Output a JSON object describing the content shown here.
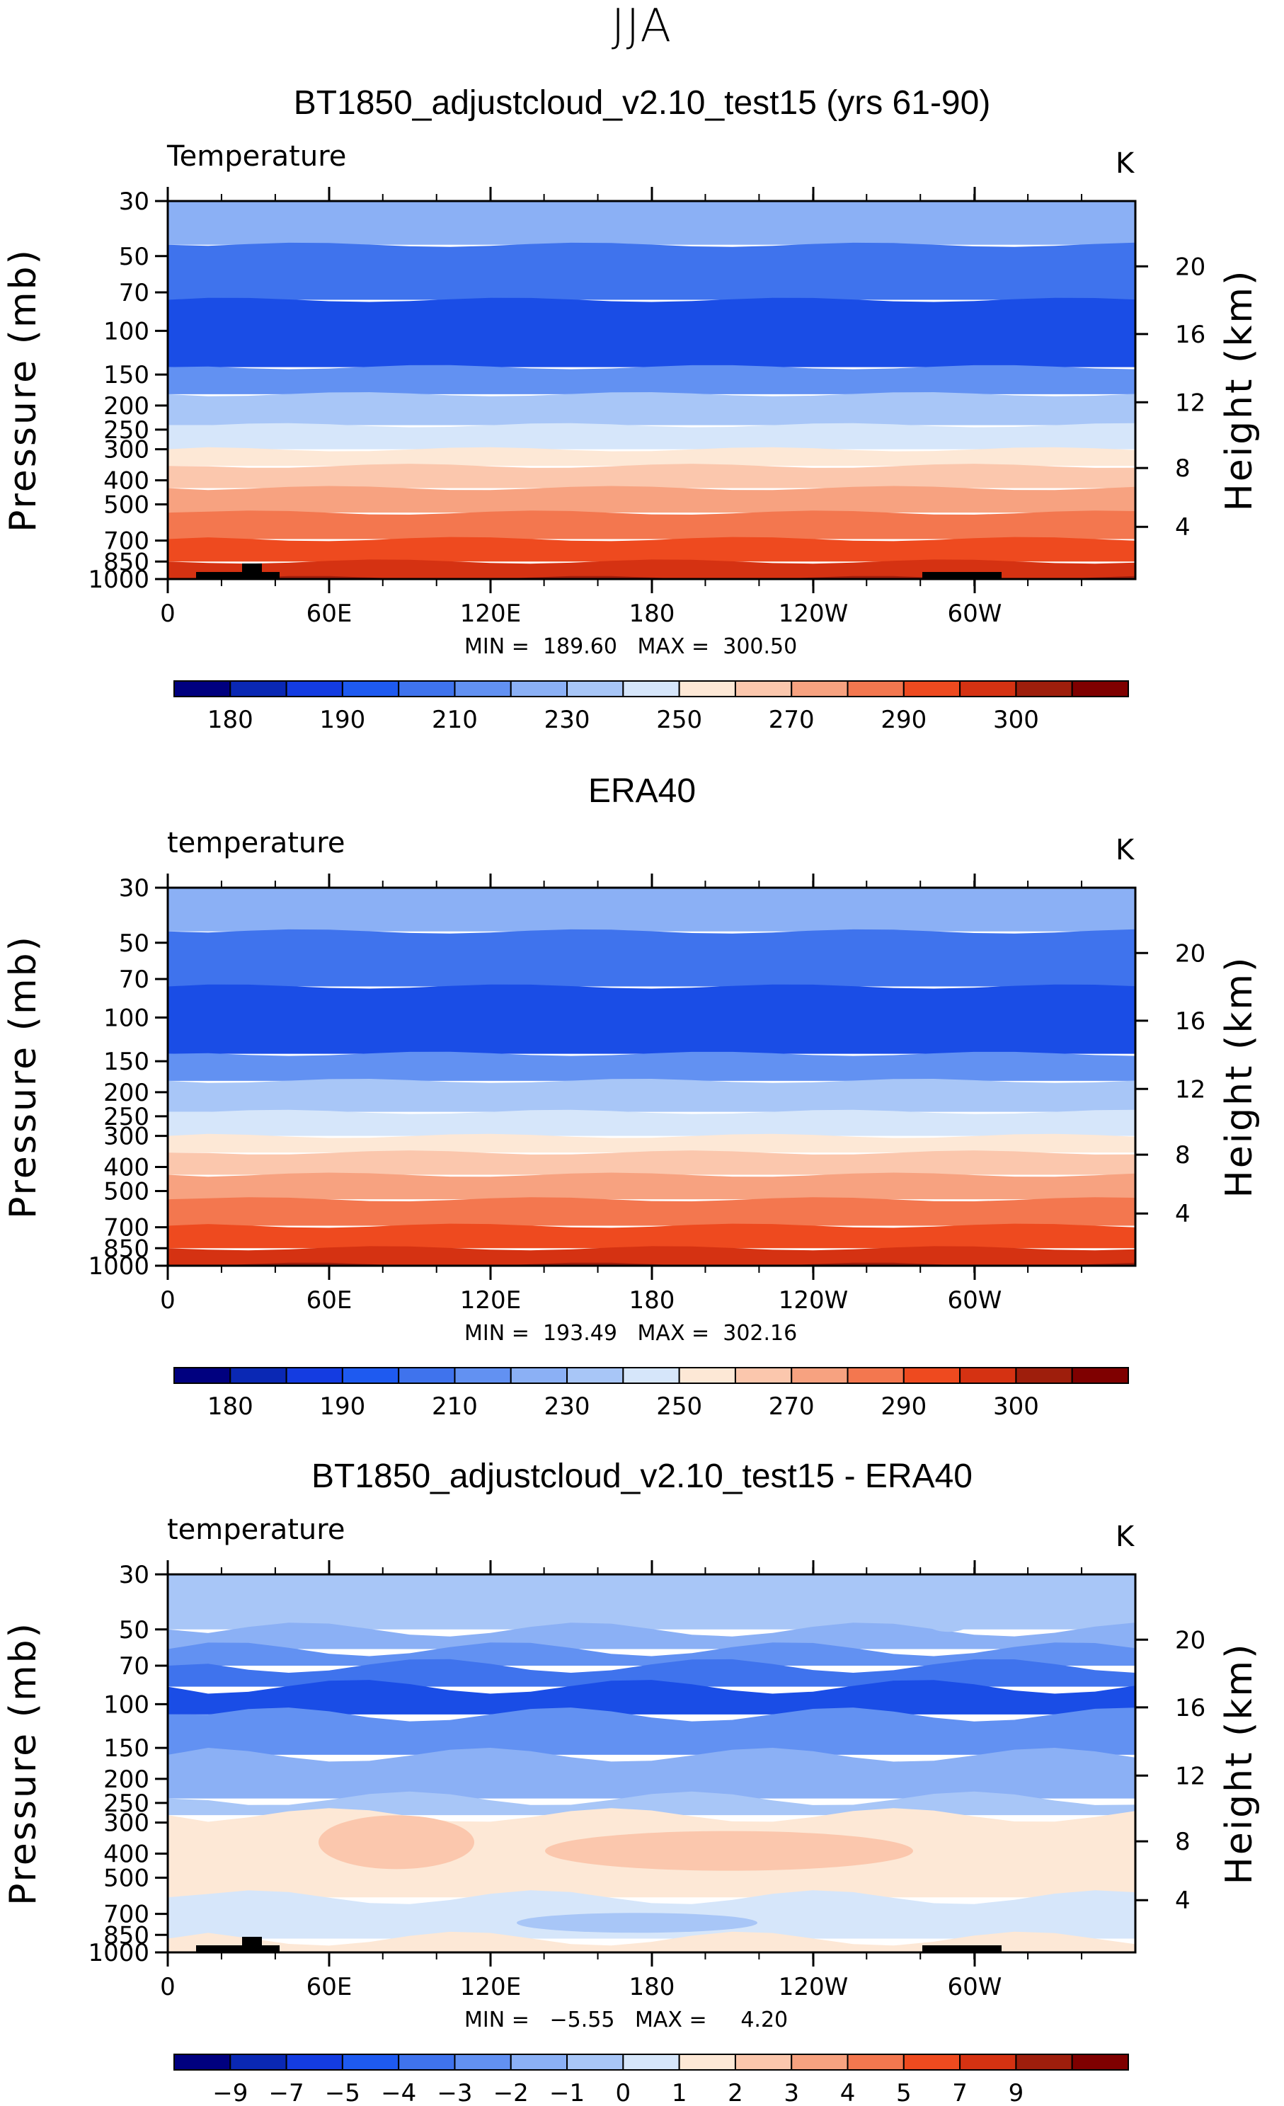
{
  "figure": {
    "title": "JJA"
  },
  "chart_data": [
    {
      "type": "heatmap",
      "title": "BT1850_adjustcloud_v2.10_test15 (yrs 61-90)",
      "variable": "Temperature",
      "units": "K",
      "ylabel": "Pressure (mb)",
      "ylabel_right": "Height (km)",
      "yticks": [
        "30",
        "50",
        "70",
        "100",
        "150",
        "200",
        "250",
        "300",
        "400",
        "500",
        "700",
        "850",
        "1000"
      ],
      "yticks_right": [
        "20",
        "16",
        "12",
        "8",
        "4"
      ],
      "xticks": [
        "0",
        "60E",
        "120E",
        "180",
        "120W",
        "60W"
      ],
      "stats": {
        "min_label": "MIN",
        "min": "189.60",
        "max_label": "MAX",
        "max": "300.50"
      },
      "colorbar_labels": [
        "180",
        "190",
        "210",
        "230",
        "250",
        "270",
        "290",
        "300"
      ],
      "level_colors": [
        "#8bb0f5",
        "#3f73ed",
        "#1a4de6",
        "#6291f2",
        "#a8c6f7",
        "#d6e6fa",
        "#fde8d6",
        "#fbc7ad",
        "#f7a280",
        "#f3774f",
        "#ee4a1f",
        "#d53212",
        "#9e1e0c"
      ],
      "level_pressures": [
        30,
        45,
        75,
        140,
        180,
        240,
        300,
        350,
        430,
        540,
        690,
        850,
        990,
        1000
      ],
      "levels_description": "zonal-mean temperature bands"
    },
    {
      "type": "heatmap",
      "title": "ERA40",
      "variable": "temperature",
      "units": "K",
      "ylabel": "Pressure (mb)",
      "ylabel_right": "Height (km)",
      "yticks": [
        "30",
        "50",
        "70",
        "100",
        "150",
        "200",
        "250",
        "300",
        "400",
        "500",
        "700",
        "850",
        "1000"
      ],
      "yticks_right": [
        "20",
        "16",
        "12",
        "8",
        "4"
      ],
      "xticks": [
        "0",
        "60E",
        "120E",
        "180",
        "120W",
        "60W"
      ],
      "stats": {
        "min_label": "MIN",
        "min": "193.49",
        "max_label": "MAX",
        "max": "302.16"
      },
      "colorbar_labels": [
        "180",
        "190",
        "210",
        "230",
        "250",
        "270",
        "290",
        "300"
      ],
      "level_colors": [
        "#8bb0f5",
        "#3f73ed",
        "#1a4de6",
        "#6291f2",
        "#a8c6f7",
        "#d6e6fa",
        "#fde8d6",
        "#fbc7ad",
        "#f7a280",
        "#f3774f",
        "#ee4a1f",
        "#d53212",
        "#9e1e0c"
      ],
      "level_pressures": [
        30,
        45,
        75,
        140,
        180,
        240,
        300,
        350,
        430,
        540,
        690,
        850,
        990,
        1000
      ]
    },
    {
      "type": "heatmap",
      "title": "BT1850_adjustcloud_v2.10_test15 - ERA40",
      "variable": "temperature",
      "units": "K",
      "ylabel": "Pressure (mb)",
      "ylabel_right": "Height (km)",
      "yticks": [
        "30",
        "50",
        "70",
        "100",
        "150",
        "200",
        "250",
        "300",
        "400",
        "500",
        "700",
        "850",
        "1000"
      ],
      "yticks_right": [
        "20",
        "16",
        "12",
        "8",
        "4"
      ],
      "xticks": [
        "0",
        "60E",
        "120E",
        "180",
        "120W",
        "60W"
      ],
      "stats": {
        "min_label": "MIN",
        "min": "−5.55",
        "max_label": "MAX",
        "max": "4.20"
      },
      "colorbar_labels": [
        "−9",
        "−7",
        "−5",
        "−4",
        "−3",
        "−2",
        "−1",
        "0",
        "1",
        "2",
        "3",
        "4",
        "5",
        "7",
        "9"
      ],
      "level_colors": [
        "#a8c6f7",
        "#8bb0f5",
        "#6291f2",
        "#3f73ed",
        "#1a4de6",
        "#6291f2",
        "#8bb0f5",
        "#a8c6f7",
        "#fde8d6",
        "#d6e6fa",
        "#fde8d6"
      ],
      "level_pressures": [
        30,
        50,
        60,
        70,
        85,
        110,
        160,
        240,
        280,
        600,
        880,
        1000
      ]
    }
  ],
  "colorbar_palette": [
    "#00007f",
    "#0a28b4",
    "#143ce1",
    "#1e5af0",
    "#3f73ed",
    "#6291f2",
    "#8bb0f5",
    "#a8c6f7",
    "#d6e6fa",
    "#fde8d6",
    "#fbc7ad",
    "#f7a280",
    "#f3774f",
    "#ee4a1f",
    "#d53212",
    "#9e1e0c",
    "#7f0000"
  ]
}
